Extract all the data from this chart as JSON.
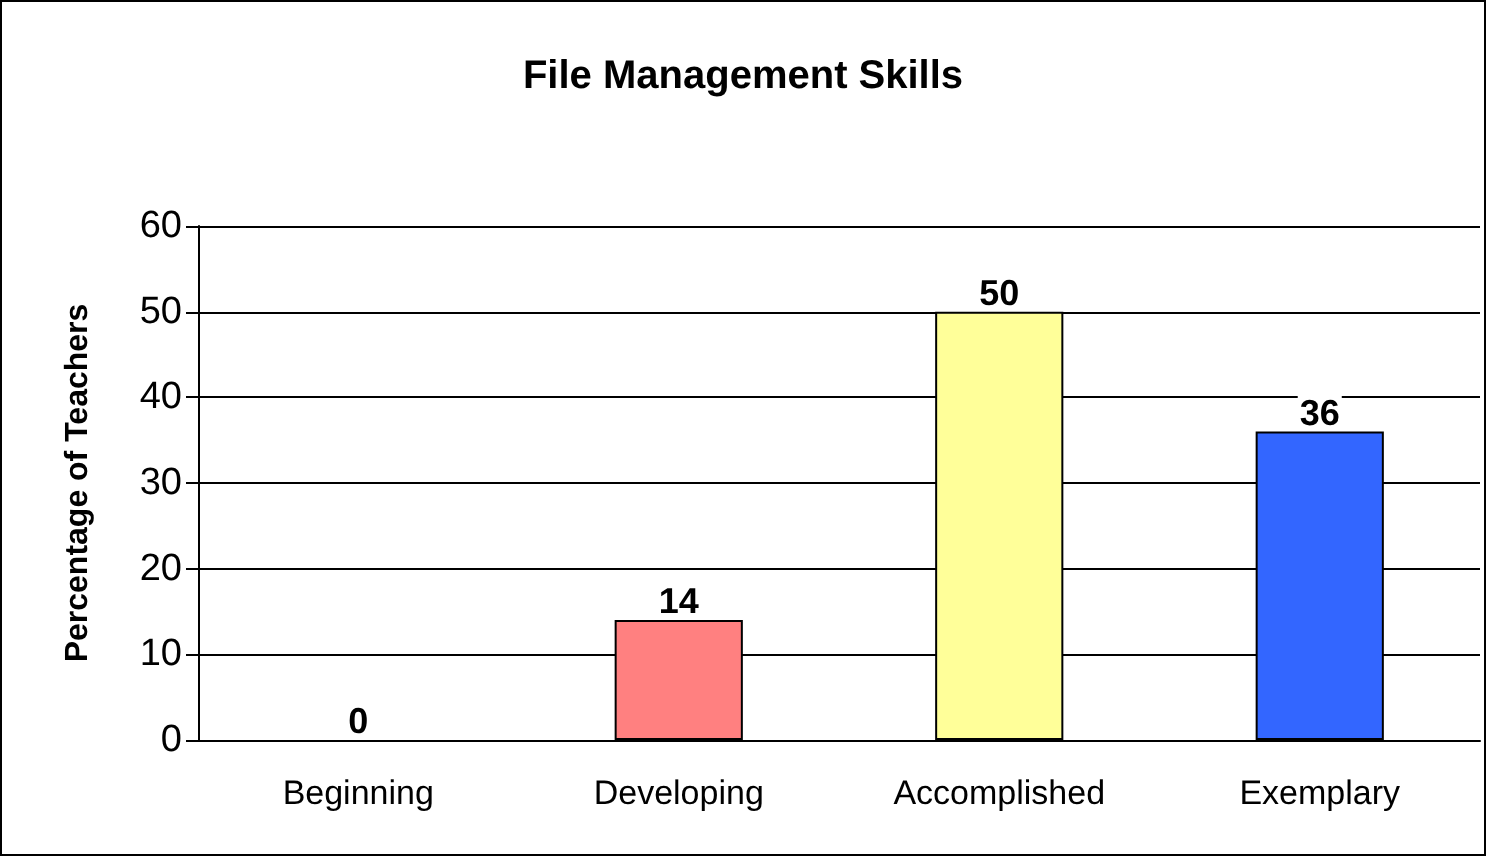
{
  "chart_data": {
    "type": "bar",
    "title": "File Management Skills",
    "ylabel": "Percentage of Teachers",
    "categories": [
      "Beginning",
      "Developing",
      "Accomplished",
      "Exemplary"
    ],
    "values": [
      0,
      14,
      50,
      36
    ],
    "colors": [
      null,
      "#ff8080",
      "#ffff99",
      "#3366ff"
    ],
    "ylim": [
      0,
      60
    ],
    "yticks": [
      0,
      10,
      20,
      30,
      40,
      50,
      60
    ],
    "grid": "y",
    "data_labels": true
  }
}
